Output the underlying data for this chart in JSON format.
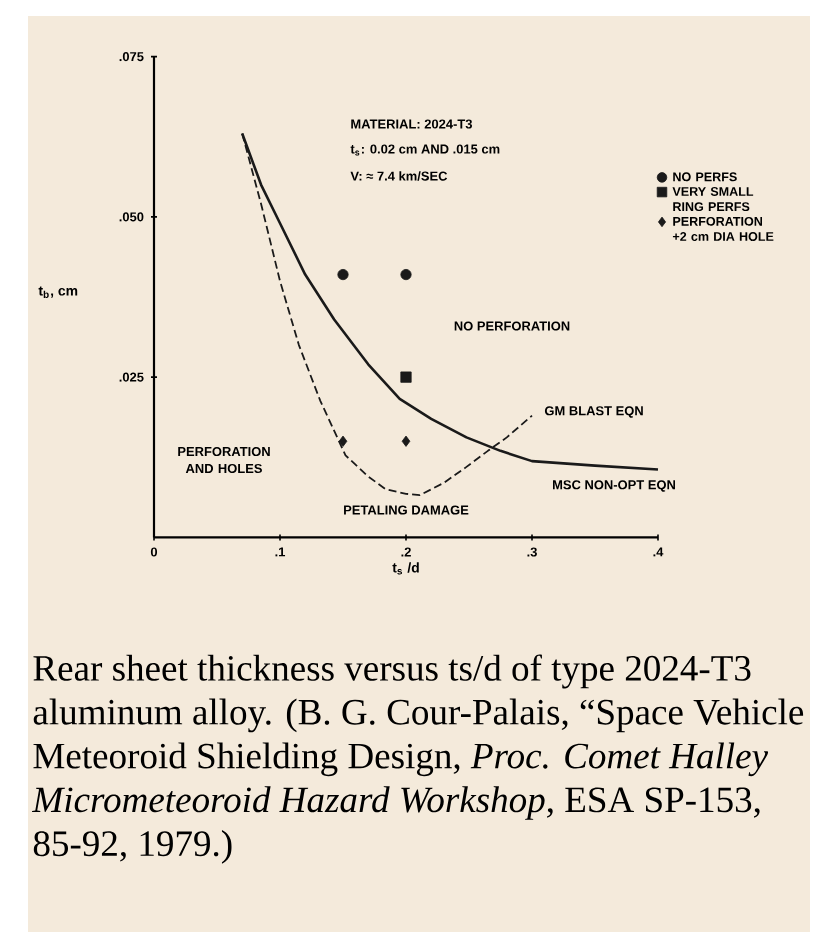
{
  "chart_data": {
    "type": "scatter",
    "xlabel": "t$_{s}$ /d",
    "ylabel": "t$_{b}$, cm",
    "xlim": [
      0,
      0.4
    ],
    "ylim": [
      0,
      0.075
    ],
    "xticks": [
      0,
      {
        "value": 0.1,
        "label": ".1"
      },
      {
        "value": 0.2,
        "label": ".2"
      },
      {
        "value": 0.3,
        "label": ".3"
      },
      {
        "value": 0.4,
        "label": ".4"
      }
    ],
    "yticks": [
      {
        "value": 0.025,
        "label": ".025"
      },
      {
        "value": 0.05,
        "label": ".050"
      },
      {
        "value": 0.075,
        "label": ".075"
      }
    ],
    "legend": "top right",
    "series": [
      {
        "name": "NO PERFS",
        "type": "scatter",
        "marker": "circle",
        "color": "#1a1a1a",
        "x": [
          0.15,
          0.2
        ],
        "values": [
          0.041,
          0.041
        ]
      },
      {
        "name": "VERY SMALL RING PERFS",
        "type": "scatter",
        "marker": "square",
        "color": "#1a1a1a",
        "x": [
          0.2
        ],
        "values": [
          0.025
        ]
      },
      {
        "name": "PERFORATION +2 cm DIA HOLE",
        "type": "scatter",
        "marker": "diamond",
        "color": "#1a1a1a",
        "x": [
          0.15,
          0.2
        ],
        "values": [
          0.015,
          0.015
        ]
      },
      {
        "name": "GM BLAST EQN",
        "type": "line",
        "line_style": "dashed",
        "color": "#1a1a1a",
        "x": [
          0.07,
          0.085,
          0.1,
          0.115,
          0.132,
          0.152,
          0.17,
          0.184,
          0.2,
          0.211,
          0.23,
          0.248,
          0.265,
          0.28,
          0.3
        ],
        "values": [
          0.063,
          0.052,
          0.04,
          0.03,
          0.0213,
          0.0128,
          0.0095,
          0.0075,
          0.0068,
          0.0066,
          0.0085,
          0.011,
          0.0135,
          0.0156,
          0.019
        ]
      },
      {
        "name": "MSC NON-OPT EQN",
        "type": "line",
        "line_style": "solid",
        "color": "#1a1a1a",
        "x": [
          0.07,
          0.085,
          0.1,
          0.12,
          0.143,
          0.17,
          0.195,
          0.22,
          0.248,
          0.275,
          0.3,
          0.35,
          0.4
        ],
        "values": [
          0.063,
          0.055,
          0.049,
          0.041,
          0.034,
          0.027,
          0.0216,
          0.0185,
          0.0156,
          0.0135,
          0.0119,
          0.0112,
          0.0106
        ]
      }
    ],
    "annotations": [
      "MATERIAL: 2024-T3",
      "t$_{s}$: 0.02 cm AND .015 cm",
      "V: ≈ 7.4 km/SEC",
      "NO PERFORATION",
      "PERFORATION AND HOLES",
      "PETALING DAMAGE",
      "Rear sheet thickness versus ts/d of type 2024-T3 aluminum alloy. (B. G. Cour-Palais, “Space Vehicle Meteoroid Shielding Design, *Proc. Comet Halley Micrometeoroid Hazard Workshop*, ESA SP-153, 85-92, 1979.)"
    ]
  }
}
